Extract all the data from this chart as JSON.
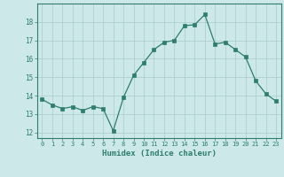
{
  "x": [
    0,
    1,
    2,
    3,
    4,
    5,
    6,
    7,
    8,
    9,
    10,
    11,
    12,
    13,
    14,
    15,
    16,
    17,
    18,
    19,
    20,
    21,
    22,
    23
  ],
  "y": [
    13.8,
    13.5,
    13.3,
    13.4,
    13.2,
    13.4,
    13.3,
    12.1,
    13.9,
    15.1,
    15.8,
    16.5,
    16.9,
    17.0,
    17.8,
    17.85,
    18.4,
    16.8,
    16.9,
    16.5,
    16.1,
    14.8,
    14.1,
    13.7
  ],
  "xlabel": "Humidex (Indice chaleur)",
  "ylabel": "",
  "xlim": [
    -0.5,
    23.5
  ],
  "ylim": [
    11.7,
    19.0
  ],
  "yticks": [
    12,
    13,
    14,
    15,
    16,
    17,
    18
  ],
  "xticks": [
    0,
    1,
    2,
    3,
    4,
    5,
    6,
    7,
    8,
    9,
    10,
    11,
    12,
    13,
    14,
    15,
    16,
    17,
    18,
    19,
    20,
    21,
    22,
    23
  ],
  "line_color": "#2e7d6e",
  "marker_color": "#2e7d6e",
  "bg_color": "#cce8e8",
  "grid_color": "#aacccc",
  "label_color": "#2e7d6e",
  "tick_color": "#2e7d6e"
}
